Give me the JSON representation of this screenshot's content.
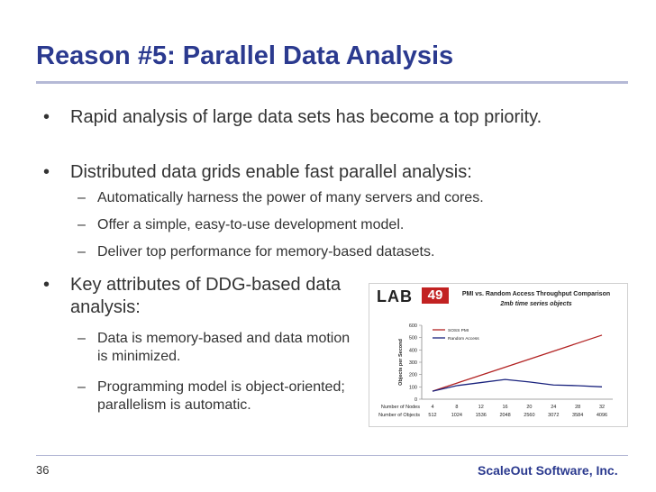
{
  "slide": {
    "title": "Reason #5: Parallel Data Analysis",
    "page_number": "36",
    "company": "ScaleOut Software, Inc."
  },
  "bullets": {
    "b1": "Rapid analysis of large data sets has become a top priority.",
    "b2": "Distributed data grids enable fast parallel analysis:",
    "b2_subs": [
      "Automatically harness the power of many servers and cores.",
      "Offer a simple, easy-to-use development model.",
      "Deliver top performance for memory-based datasets."
    ],
    "b3": "Key attributes of DDG-based data analysis:",
    "b3_subs": [
      "Data is memory-based and data motion is minimized.",
      "Programming model is object-oriented; parallelism is automatic."
    ]
  },
  "logo": {
    "lab": "LAB",
    "num": "49"
  },
  "chart_data": {
    "type": "line",
    "title": "PMI vs. Random Access Throughput Comparison",
    "subtitle": "2mb time series objects",
    "ylabel": "Objects per Second",
    "x_row1_label": "Number of Nodes",
    "x_row2_label": "Number of Objects",
    "x": [
      "4",
      "8",
      "12",
      "16",
      "20",
      "24",
      "28",
      "32"
    ],
    "x2": [
      "512",
      "1024",
      "1536",
      "2048",
      "2560",
      "3072",
      "3584",
      "4096"
    ],
    "ylim": [
      0,
      600
    ],
    "yticks": [
      0,
      100,
      200,
      300,
      400,
      500,
      600
    ],
    "grid": false,
    "legend_position": "top-left",
    "series": [
      {
        "name": "SOSS PMI",
        "color": "#b22222",
        "values": [
          65,
          130,
          195,
          260,
          325,
          390,
          455,
          520
        ]
      },
      {
        "name": "Random Access",
        "color": "#1a237e",
        "values": [
          65,
          110,
          135,
          160,
          140,
          115,
          110,
          100
        ]
      }
    ]
  }
}
